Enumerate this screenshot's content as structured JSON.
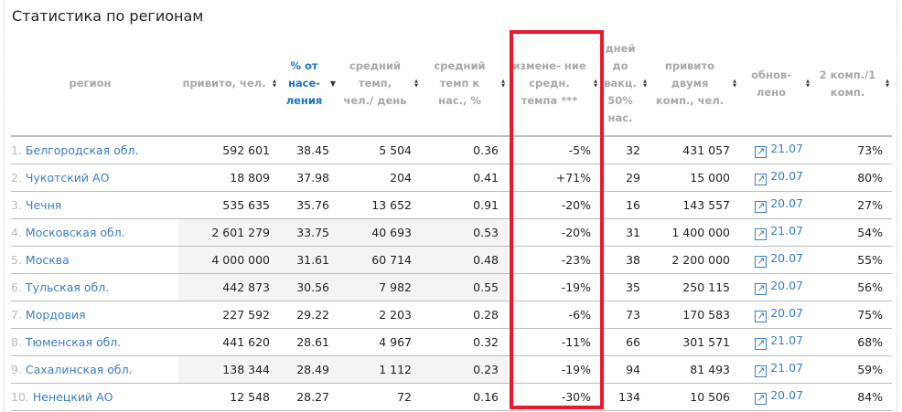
{
  "title": "Статистика по регионам",
  "headers": [
    "регион",
    "привито, чел.",
    "% от насе- ления",
    "средний темп, чел./ день",
    "средний темп к нас., %",
    "измене- ние средн. темпа ***",
    "дней до вакц. 50% нас.",
    "привито двумя комп., чел.",
    "обнов- лено",
    "2 комп./1 комп."
  ],
  "rows": [
    {
      "n": "1.",
      "region": "Белгородская обл.",
      "vacc": "592 601",
      "pct": "38.45",
      "rate": "5 504",
      "rate_pct": "0.36",
      "change": "-5%",
      "days": "32",
      "two": "431 057",
      "upd": "21.07",
      "ratio": "73%",
      "hl": false
    },
    {
      "n": "2.",
      "region": "Чукотский АО",
      "vacc": "18 809",
      "pct": "37.98",
      "rate": "204",
      "rate_pct": "0.41",
      "change": "+71%",
      "days": "29",
      "two": "15 000",
      "upd": "20.07",
      "ratio": "80%",
      "hl": false
    },
    {
      "n": "3.",
      "region": "Чечня",
      "vacc": "535 635",
      "pct": "35.76",
      "rate": "13 652",
      "rate_pct": "0.91",
      "change": "-20%",
      "days": "16",
      "two": "143 557",
      "upd": "20.07",
      "ratio": "27%",
      "hl": false
    },
    {
      "n": "4.",
      "region": "Московская обл.",
      "vacc": "2 601 279",
      "pct": "33.75",
      "rate": "40 693",
      "rate_pct": "0.53",
      "change": "-20%",
      "days": "31",
      "two": "1 400 000",
      "upd": "21.07",
      "ratio": "54%",
      "hl": true
    },
    {
      "n": "5.",
      "region": "Москва",
      "vacc": "4 000 000",
      "pct": "31.61",
      "rate": "60 714",
      "rate_pct": "0.48",
      "change": "-23%",
      "days": "38",
      "two": "2 200 000",
      "upd": "20.07",
      "ratio": "55%",
      "hl": true
    },
    {
      "n": "6.",
      "region": "Тульская обл.",
      "vacc": "442 873",
      "pct": "30.56",
      "rate": "7 982",
      "rate_pct": "0.55",
      "change": "-19%",
      "days": "35",
      "two": "250 115",
      "upd": "20.07",
      "ratio": "56%",
      "hl": true
    },
    {
      "n": "7.",
      "region": "Мордовия",
      "vacc": "227 592",
      "pct": "29.22",
      "rate": "2 203",
      "rate_pct": "0.28",
      "change": "-6%",
      "days": "73",
      "two": "170 583",
      "upd": "20.07",
      "ratio": "75%",
      "hl": false
    },
    {
      "n": "8.",
      "region": "Тюменская обл.",
      "vacc": "441 620",
      "pct": "28.61",
      "rate": "4 967",
      "rate_pct": "0.32",
      "change": "-11%",
      "days": "66",
      "two": "301 571",
      "upd": "21.07",
      "ratio": "68%",
      "hl": false
    },
    {
      "n": "9.",
      "region": "Сахалинская обл.",
      "vacc": "138 344",
      "pct": "28.49",
      "rate": "1 112",
      "rate_pct": "0.23",
      "change": "-19%",
      "days": "94",
      "two": "81 493",
      "upd": "21.07",
      "ratio": "59%",
      "hl": true
    },
    {
      "n": "10.",
      "region": "Ненецкий АО",
      "vacc": "12 548",
      "pct": "28.27",
      "rate": "72",
      "rate_pct": "0.16",
      "change": "-30%",
      "days": "134",
      "two": "10 506",
      "upd": "20.07",
      "ratio": "84%",
      "hl": false
    }
  ],
  "colors": {
    "link": "#3a7dc4",
    "highlight_box": "#e8192c",
    "active_header": "#1a73c8"
  }
}
